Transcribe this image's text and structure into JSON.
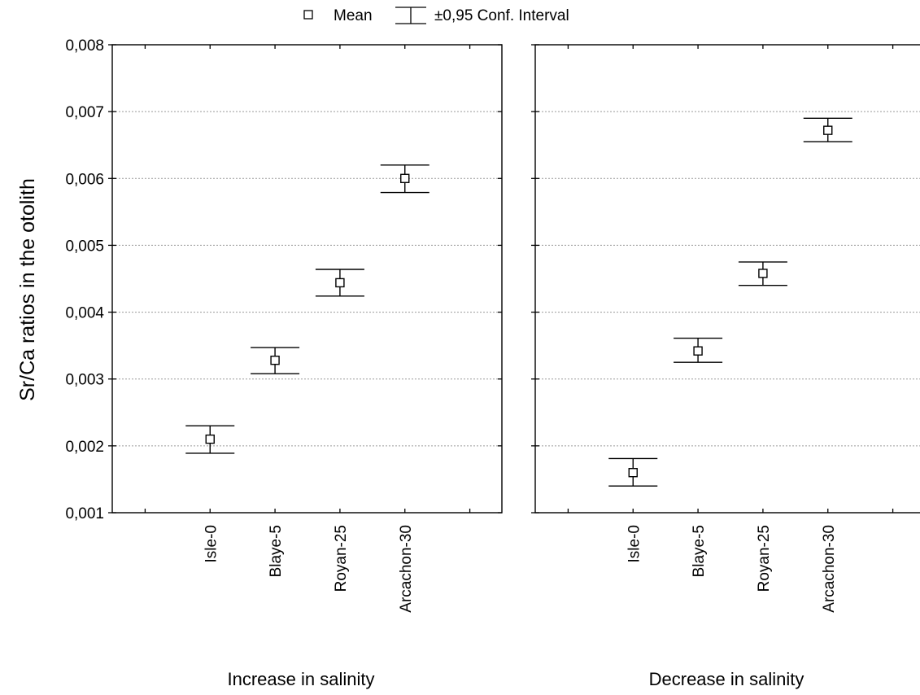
{
  "legend": {
    "mean_label": "Mean",
    "interval_label": "±0,95 Conf. Interval",
    "placement": "top-center"
  },
  "chart_data": [
    {
      "type": "scatter",
      "xlabel": "Increase in salinity",
      "ylabel": "Sr/Ca ratios in the otolith",
      "categories": [
        "Isle-0",
        "Blaye-5",
        "Royan-25",
        "Arcachon-30"
      ],
      "mean": [
        0.0021,
        0.00328,
        0.00444,
        0.006
      ],
      "ci_lower": [
        0.00189,
        0.00308,
        0.00424,
        0.00579
      ],
      "ci_upper": [
        0.0023,
        0.00347,
        0.00464,
        0.0062
      ],
      "ylim": [
        0.001,
        0.008
      ],
      "yticks": [
        "0,001",
        "0,002",
        "0,003",
        "0,004",
        "0,005",
        "0,006",
        "0,007",
        "0,008"
      ],
      "grid": true
    },
    {
      "type": "scatter",
      "xlabel": "Decrease in salinity",
      "ylabel": "",
      "categories": [
        "Isle-0",
        "Blaye-5",
        "Royan-25",
        "Arcachon-30"
      ],
      "mean": [
        0.0016,
        0.00342,
        0.00458,
        0.00672
      ],
      "ci_lower": [
        0.0014,
        0.00325,
        0.0044,
        0.00655
      ],
      "ci_upper": [
        0.00181,
        0.00361,
        0.00475,
        0.0069
      ],
      "ylim": [
        0.001,
        0.008
      ],
      "yticks": [
        "0,001",
        "0,002",
        "0,003",
        "0,004",
        "0,005",
        "0,006",
        "0,007",
        "0,008"
      ],
      "grid": true
    }
  ]
}
